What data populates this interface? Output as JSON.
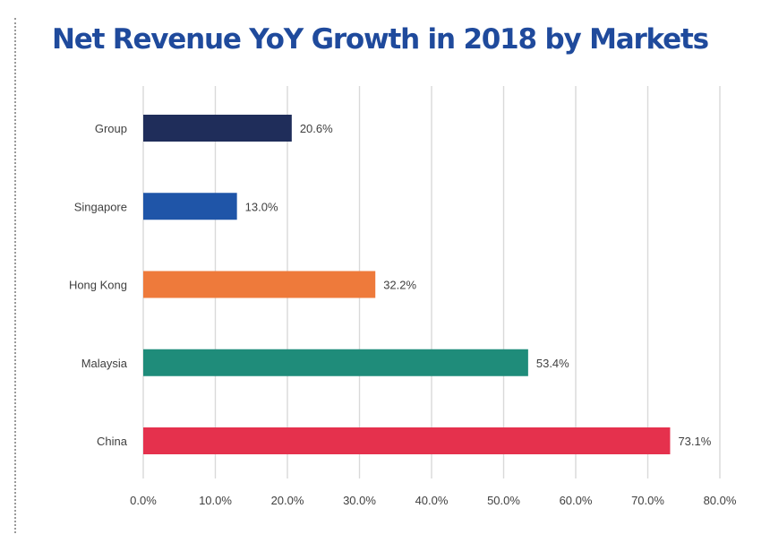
{
  "chart_data": {
    "type": "bar",
    "orientation": "horizontal",
    "title": "Net Revenue YoY Growth in 2018 by Markets",
    "categories": [
      "Group",
      "Singapore",
      "Hong Kong",
      "Malaysia",
      "China"
    ],
    "values": [
      20.6,
      13.0,
      32.2,
      53.4,
      73.1
    ],
    "data_labels": [
      "20.6%",
      "13.0%",
      "32.2%",
      "53.4%",
      "73.1%"
    ],
    "bar_colors": [
      "#1f2d5a",
      "#1f55a8",
      "#ee7a3b",
      "#1f8c7a",
      "#e5314d"
    ],
    "xlim": [
      0,
      80
    ],
    "x_ticks": [
      0,
      10,
      20,
      30,
      40,
      50,
      60,
      70,
      80
    ],
    "x_tick_labels": [
      "0.0%",
      "10.0%",
      "20.0%",
      "30.0%",
      "40.0%",
      "50.0%",
      "60.0%",
      "70.0%",
      "80.0%"
    ],
    "xlabel": "",
    "ylabel": "",
    "grid": true,
    "legend": "none"
  },
  "colors": {
    "title": "#1f4a9c",
    "gridline": "#d9d9d9",
    "axis_text": "#404040"
  }
}
